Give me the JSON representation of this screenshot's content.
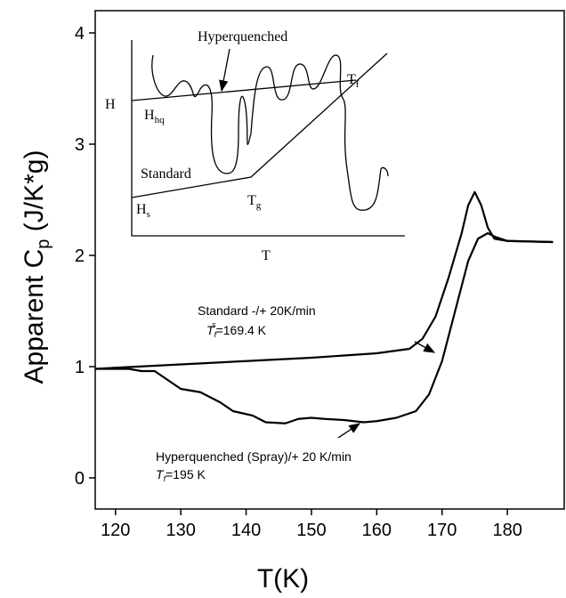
{
  "chart_data": {
    "type": "line",
    "xlabel": "T(K)",
    "ylabel": {
      "text": "Apparent C",
      "sub": "p",
      "after": " (J/K*g)"
    },
    "xlim": [
      116.9,
      188.7
    ],
    "ylim": [
      -0.28,
      4.2
    ],
    "xticks": [
      120,
      130,
      140,
      150,
      160,
      170,
      180
    ],
    "yticks": [
      0,
      1,
      2,
      3,
      4
    ],
    "series": [
      {
        "name": "Standard -/+ 20K/min",
        "color": "#000000",
        "x": [
          117,
          120,
          130,
          140,
          150,
          160,
          165,
          167,
          169,
          171,
          173,
          174,
          175,
          176,
          177,
          178,
          180,
          187
        ],
        "values": [
          0.98,
          0.99,
          1.02,
          1.05,
          1.08,
          1.12,
          1.16,
          1.25,
          1.45,
          1.8,
          2.2,
          2.45,
          2.57,
          2.45,
          2.25,
          2.15,
          2.13,
          2.12
        ]
      },
      {
        "name": "Hyperquenched (Spray)/+ 20 K/min",
        "color": "#000000",
        "x": [
          117,
          122,
          124,
          126,
          128,
          130,
          133,
          136,
          138,
          141,
          143,
          146,
          148,
          150,
          152,
          155,
          158,
          160,
          163,
          166,
          168,
          170,
          172,
          174,
          175.5,
          177,
          178,
          180,
          187
        ],
        "values": [
          0.98,
          0.98,
          0.96,
          0.96,
          0.88,
          0.8,
          0.77,
          0.68,
          0.6,
          0.56,
          0.5,
          0.49,
          0.53,
          0.54,
          0.53,
          0.52,
          0.5,
          0.51,
          0.54,
          0.6,
          0.75,
          1.05,
          1.5,
          1.95,
          2.15,
          2.2,
          2.17,
          2.13,
          2.12
        ]
      }
    ],
    "annotations": [
      {
        "text": "T",
        "sub": "f",
        "sup": "s",
        "after": "=169.4 K"
      },
      {
        "text": "T",
        "sub": "f",
        "after": "=195 K"
      }
    ],
    "inset": {
      "y_label": "H",
      "x_label": "T",
      "hyperquenched": "Hyperquenched",
      "standard": "Standard",
      "h_hq": {
        "text": "H",
        "sub": "hq"
      },
      "h_s": {
        "text": "H",
        "sub": "s"
      },
      "t_g": {
        "text": "T",
        "sub": "g"
      },
      "t_f": {
        "text": "T",
        "sub": "f"
      }
    }
  }
}
